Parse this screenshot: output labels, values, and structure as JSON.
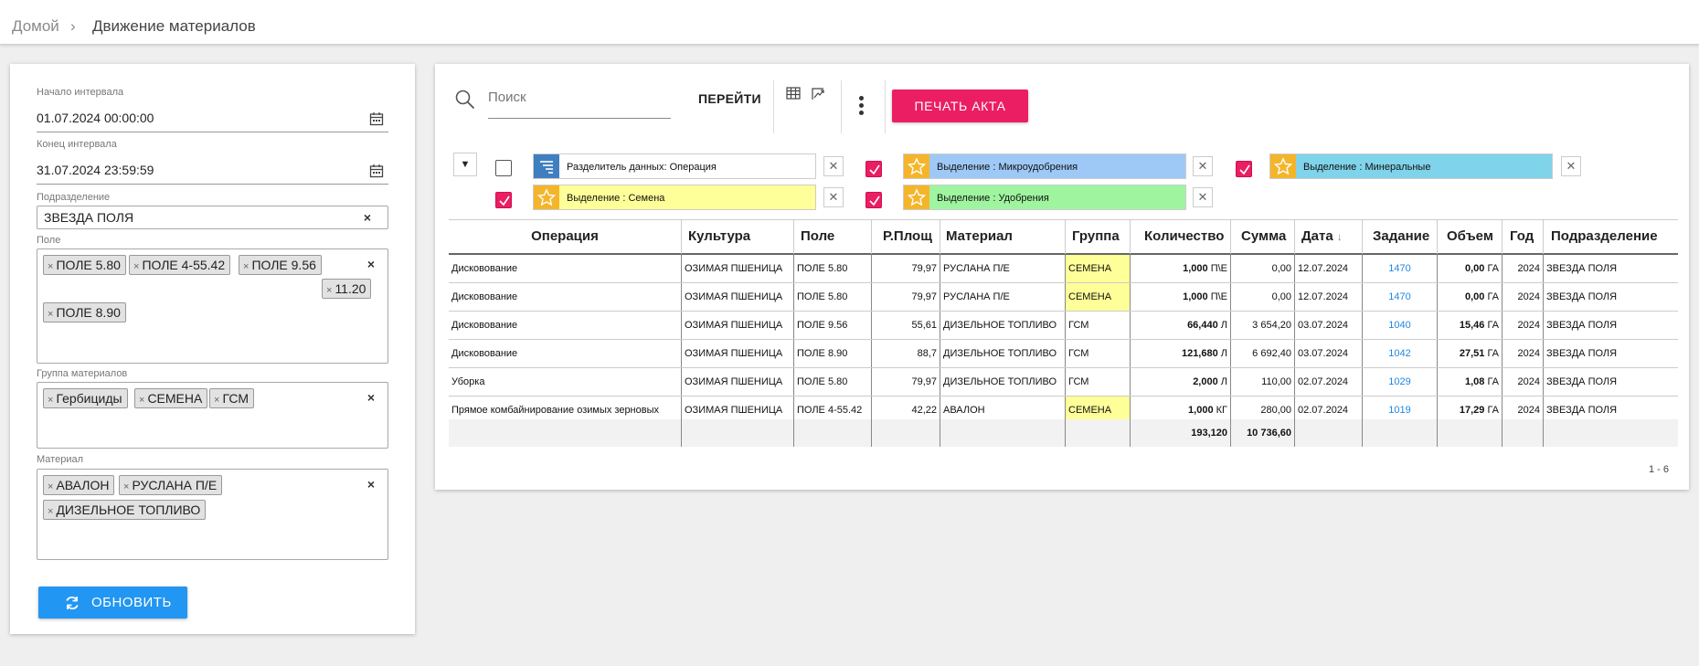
{
  "breadcrumb": {
    "home": "Домой",
    "separator": "›",
    "current": "Движение материалов"
  },
  "filters": {
    "start": {
      "label": "Начало интервала",
      "value": "01.07.2024 00:00:00"
    },
    "end": {
      "label": "Конец интервала",
      "value": "31.07.2024 23:59:59"
    },
    "division": {
      "label": "Подразделение",
      "value": "ЗВЕЗДА ПОЛЯ"
    },
    "field": {
      "label": "Поле",
      "tags": [
        "ПОЛЕ 5.80",
        "ПОЛЕ 4-55.42",
        "ПОЛЕ 9.56",
        "11.20",
        "ПОЛЕ 8.90"
      ]
    },
    "material_group": {
      "label": "Группа материалов",
      "tags": [
        "Гербициды",
        "СЕМЕНА",
        "ГСМ"
      ]
    },
    "material": {
      "label": "Материал",
      "tags": [
        "АВАЛОН",
        "РУСЛАНА П/Е",
        "ДИЗЕЛЬНОЕ ТОПЛИВО"
      ]
    },
    "clear_glyph": "×",
    "tag_remove_glyph": "×",
    "refresh_label": "ОБНОВИТЬ"
  },
  "toolbar": {
    "search_placeholder": "Поиск",
    "goto_label": "ПЕРЕЙТИ",
    "print_label": "ПЕЧАТЬ АКТА"
  },
  "rules": {
    "collapse_glyph": "▼",
    "remove_glyph": "✕",
    "items": [
      {
        "label": "Разделитель данных: Операция",
        "checked": false,
        "color": "#ffffff",
        "icon_color": "#3f7fbf",
        "icon": "splitter-icon"
      },
      {
        "label": "Выделение : Микроудобрения",
        "checked": true,
        "color": "#9ec9f7",
        "icon_color": "#f5b52a",
        "icon": "star-icon"
      },
      {
        "label": "Выделение : Минеральные",
        "checked": true,
        "color": "#7fd3ea",
        "icon_color": "#f5b52a",
        "icon": "star-icon"
      },
      {
        "label": "Выделение : Семена",
        "checked": true,
        "color": "#ffff99",
        "icon_color": "#f5b52a",
        "icon": "star-icon"
      },
      {
        "label": "Выделение : Удобрения",
        "checked": true,
        "color": "#9ff59f",
        "icon_color": "#f5b52a",
        "icon": "star-icon"
      }
    ]
  },
  "table": {
    "columns": [
      "Операция",
      "Культура",
      "Поле",
      "Р.Площ",
      "Материал",
      "Группа",
      "Количество",
      "Сумма",
      "Дата",
      "Задание",
      "Объем",
      "Год",
      "Подразделение"
    ],
    "sort_glyph": "↓",
    "rows": [
      {
        "op": "Дисковование",
        "crop": "ОЗИМАЯ ПШЕНИЦА",
        "field": "ПОЛЕ 5.80",
        "area": "79,97",
        "material": "РУСЛАНА П/Е",
        "group": "СЕМЕНА",
        "qty": "1,000",
        "unit": "П\\Е",
        "sum": "0,00",
        "date": "12.07.2024",
        "task": "1470",
        "vol": "0,00",
        "vol_unit": "ГА",
        "year": "2024",
        "div": "ЗВЕЗДА ПОЛЯ",
        "hl": true
      },
      {
        "op": "Дисковование",
        "crop": "ОЗИМАЯ ПШЕНИЦА",
        "field": "ПОЛЕ 5.80",
        "area": "79,97",
        "material": "РУСЛАНА П/Е",
        "group": "СЕМЕНА",
        "qty": "1,000",
        "unit": "П\\Е",
        "sum": "0,00",
        "date": "12.07.2024",
        "task": "1470",
        "vol": "0,00",
        "vol_unit": "ГА",
        "year": "2024",
        "div": "ЗВЕЗДА ПОЛЯ",
        "hl": true
      },
      {
        "op": "Дисковование",
        "crop": "ОЗИМАЯ ПШЕНИЦА",
        "field": "ПОЛЕ 9.56",
        "area": "55,61",
        "material": "ДИЗЕЛЬНОЕ ТОПЛИВО",
        "group": "ГСМ",
        "qty": "66,440",
        "unit": "Л",
        "sum": "3 654,20",
        "date": "03.07.2024",
        "task": "1040",
        "vol": "15,46",
        "vol_unit": "ГА",
        "year": "2024",
        "div": "ЗВЕЗДА ПОЛЯ",
        "hl": false
      },
      {
        "op": "Дисковование",
        "crop": "ОЗИМАЯ ПШЕНИЦА",
        "field": "ПОЛЕ 8.90",
        "area": "88,7",
        "material": "ДИЗЕЛЬНОЕ ТОПЛИВО",
        "group": "ГСМ",
        "qty": "121,680",
        "unit": "Л",
        "sum": "6 692,40",
        "date": "03.07.2024",
        "task": "1042",
        "vol": "27,51",
        "vol_unit": "ГА",
        "year": "2024",
        "div": "ЗВЕЗДА ПОЛЯ",
        "hl": false
      },
      {
        "op": "Уборка",
        "crop": "ОЗИМАЯ ПШЕНИЦА",
        "field": "ПОЛЕ 5.80",
        "area": "79,97",
        "material": "ДИЗЕЛЬНОЕ ТОПЛИВО",
        "group": "ГСМ",
        "qty": "2,000",
        "unit": "Л",
        "sum": "110,00",
        "date": "02.07.2024",
        "task": "1029",
        "vol": "1,08",
        "vol_unit": "ГА",
        "year": "2024",
        "div": "ЗВЕЗДА ПОЛЯ",
        "hl": false
      },
      {
        "op": "Прямое комбайнирование озимых зерновых",
        "crop": "ОЗИМАЯ ПШЕНИЦА",
        "field": "ПОЛЕ 4-55.42",
        "area": "42,22",
        "material": "АВАЛОН",
        "group": "СЕМЕНА",
        "qty": "1,000",
        "unit": "КГ",
        "sum": "280,00",
        "date": "02.07.2024",
        "task": "1019",
        "vol": "17,29",
        "vol_unit": "ГА",
        "year": "2024",
        "div": "ЗВЕЗДА ПОЛЯ",
        "hl": true
      }
    ],
    "totals": {
      "qty": "193,120",
      "sum": "10 736,60"
    },
    "pager": "1 - 6"
  },
  "colors": {
    "accent_blue": "#2196f3",
    "print_pink": "#ec1e63",
    "link": "#1e88e5",
    "highlight_yellow": "#ffff99"
  }
}
